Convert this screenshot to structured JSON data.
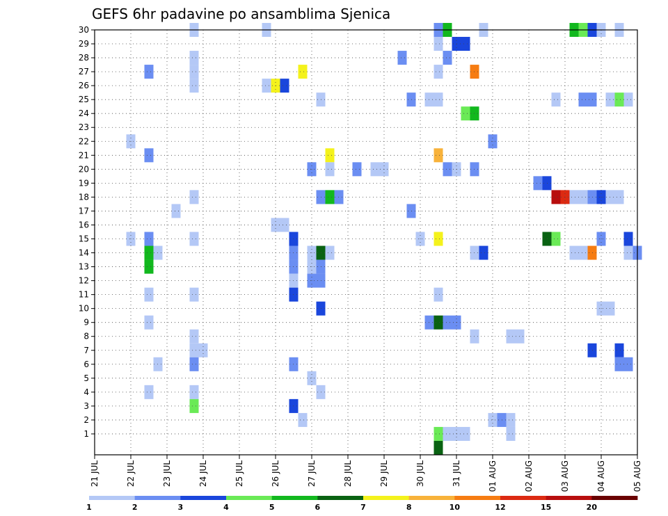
{
  "chart_data": {
    "type": "heatmap",
    "title": "GEFS 6hr padavine po ansamblima Sjenica",
    "xlabel": "",
    "ylabel": "",
    "x_tick_labels": [
      "21 JUL",
      "22 JUL",
      "23 JUL",
      "24 JUL",
      "25 JUL",
      "26 JUL",
      "27 JUL",
      "28 JUL",
      "29 JUL",
      "30 JUL",
      "31 JUL",
      "01 AUG",
      "02 AUG",
      "03 AUG",
      "04 AUG",
      "05 AUG"
    ],
    "y_tick_labels": [
      "1",
      "2",
      "3",
      "4",
      "5",
      "6",
      "7",
      "8",
      "9",
      "10",
      "11",
      "12",
      "13",
      "14",
      "15",
      "16",
      "17",
      "18",
      "19",
      "20",
      "21",
      "22",
      "23",
      "24",
      "25",
      "26",
      "27",
      "28",
      "29",
      "30"
    ],
    "ylim": [
      0,
      30
    ],
    "xlim_steps": [
      0,
      60
    ],
    "steps_per_day": 4,
    "grid": true,
    "colorbar": {
      "bounds": [
        "1",
        "2",
        "3",
        "4",
        "5",
        "6",
        "7",
        "8",
        "10",
        "12",
        "15",
        "20"
      ],
      "colors": [
        "#b4c8f6",
        "#6b8ef2",
        "#1a46dc",
        "#6aea56",
        "#12b81e",
        "#096212",
        "#f4f21c",
        "#f8b23a",
        "#f67c12",
        "#dc2a12",
        "#b80e0e",
        "#6a0202"
      ]
    },
    "cells": [
      {
        "m": 30,
        "s": 11,
        "v": 1
      },
      {
        "m": 30,
        "s": 19,
        "v": 1
      },
      {
        "m": 30,
        "s": 38,
        "v": 2
      },
      {
        "m": 30,
        "s": 39,
        "v": 5
      },
      {
        "m": 30,
        "s": 43,
        "v": 1
      },
      {
        "m": 30,
        "s": 53,
        "v": 5
      },
      {
        "m": 30,
        "s": 54,
        "v": 4
      },
      {
        "m": 30,
        "s": 55,
        "v": 3
      },
      {
        "m": 30,
        "s": 56,
        "v": 1
      },
      {
        "m": 30,
        "s": 58,
        "v": 1
      },
      {
        "m": 29,
        "s": 38,
        "v": 1
      },
      {
        "m": 29,
        "s": 40,
        "v": 3
      },
      {
        "m": 29,
        "s": 41,
        "v": 3
      },
      {
        "m": 28,
        "s": 11,
        "v": 1
      },
      {
        "m": 28,
        "s": 34,
        "v": 2
      },
      {
        "m": 28,
        "s": 39,
        "v": 2
      },
      {
        "m": 27,
        "s": 6,
        "v": 2
      },
      {
        "m": 27,
        "s": 11,
        "v": 1
      },
      {
        "m": 27,
        "s": 23,
        "v": 7
      },
      {
        "m": 27,
        "s": 38,
        "v": 1
      },
      {
        "m": 27,
        "s": 42,
        "v": 10
      },
      {
        "m": 26,
        "s": 11,
        "v": 1
      },
      {
        "m": 26,
        "s": 19,
        "v": 1
      },
      {
        "m": 26,
        "s": 20,
        "v": 7
      },
      {
        "m": 26,
        "s": 21,
        "v": 3
      },
      {
        "m": 25,
        "s": 25,
        "v": 1
      },
      {
        "m": 25,
        "s": 35,
        "v": 2
      },
      {
        "m": 25,
        "s": 37,
        "v": 1
      },
      {
        "m": 25,
        "s": 38,
        "v": 1
      },
      {
        "m": 25,
        "s": 51,
        "v": 1
      },
      {
        "m": 25,
        "s": 54,
        "v": 2
      },
      {
        "m": 25,
        "s": 55,
        "v": 2
      },
      {
        "m": 25,
        "s": 57,
        "v": 1
      },
      {
        "m": 25,
        "s": 58,
        "v": 4
      },
      {
        "m": 25,
        "s": 59,
        "v": 1
      },
      {
        "m": 24,
        "s": 41,
        "v": 4
      },
      {
        "m": 24,
        "s": 42,
        "v": 5
      },
      {
        "m": 22,
        "s": 4,
        "v": 1
      },
      {
        "m": 22,
        "s": 44,
        "v": 2
      },
      {
        "m": 21,
        "s": 6,
        "v": 2
      },
      {
        "m": 21,
        "s": 26,
        "v": 7
      },
      {
        "m": 21,
        "s": 38,
        "v": 8
      },
      {
        "m": 20,
        "s": 24,
        "v": 2
      },
      {
        "m": 20,
        "s": 26,
        "v": 1
      },
      {
        "m": 20,
        "s": 29,
        "v": 2
      },
      {
        "m": 20,
        "s": 31,
        "v": 1
      },
      {
        "m": 20,
        "s": 32,
        "v": 1
      },
      {
        "m": 20,
        "s": 39,
        "v": 2
      },
      {
        "m": 20,
        "s": 40,
        "v": 1
      },
      {
        "m": 20,
        "s": 42,
        "v": 2
      },
      {
        "m": 19,
        "s": 49,
        "v": 2
      },
      {
        "m": 19,
        "s": 50,
        "v": 3
      },
      {
        "m": 18,
        "s": 11,
        "v": 1
      },
      {
        "m": 18,
        "s": 25,
        "v": 2
      },
      {
        "m": 18,
        "s": 26,
        "v": 5
      },
      {
        "m": 18,
        "s": 27,
        "v": 2
      },
      {
        "m": 18,
        "s": 51,
        "v": 15
      },
      {
        "m": 18,
        "s": 52,
        "v": 12
      },
      {
        "m": 18,
        "s": 53,
        "v": 1
      },
      {
        "m": 18,
        "s": 54,
        "v": 1
      },
      {
        "m": 18,
        "s": 55,
        "v": 2
      },
      {
        "m": 18,
        "s": 56,
        "v": 3
      },
      {
        "m": 18,
        "s": 57,
        "v": 1
      },
      {
        "m": 18,
        "s": 58,
        "v": 1
      },
      {
        "m": 17,
        "s": 9,
        "v": 1
      },
      {
        "m": 17,
        "s": 35,
        "v": 2
      },
      {
        "m": 16,
        "s": 20,
        "v": 1
      },
      {
        "m": 16,
        "s": 21,
        "v": 1
      },
      {
        "m": 15,
        "s": 4,
        "v": 1
      },
      {
        "m": 15,
        "s": 6,
        "v": 2
      },
      {
        "m": 15,
        "s": 11,
        "v": 1
      },
      {
        "m": 15,
        "s": 22,
        "v": 3
      },
      {
        "m": 15,
        "s": 36,
        "v": 1
      },
      {
        "m": 15,
        "s": 38,
        "v": 7
      },
      {
        "m": 15,
        "s": 50,
        "v": 6
      },
      {
        "m": 15,
        "s": 51,
        "v": 4
      },
      {
        "m": 15,
        "s": 56,
        "v": 2
      },
      {
        "m": 15,
        "s": 59,
        "v": 3
      },
      {
        "m": 14,
        "s": 6,
        "v": 5
      },
      {
        "m": 14,
        "s": 7,
        "v": 1
      },
      {
        "m": 14,
        "s": 22,
        "v": 2
      },
      {
        "m": 14,
        "s": 24,
        "v": 1
      },
      {
        "m": 14,
        "s": 25,
        "v": 6
      },
      {
        "m": 14,
        "s": 26,
        "v": 1
      },
      {
        "m": 14,
        "s": 42,
        "v": 1
      },
      {
        "m": 14,
        "s": 43,
        "v": 3
      },
      {
        "m": 14,
        "s": 53,
        "v": 1
      },
      {
        "m": 14,
        "s": 54,
        "v": 1
      },
      {
        "m": 14,
        "s": 55,
        "v": 11
      },
      {
        "m": 14,
        "s": 59,
        "v": 1
      },
      {
        "m": 14,
        "s": 60,
        "v": 2
      },
      {
        "m": 13,
        "s": 6,
        "v": 5
      },
      {
        "m": 13,
        "s": 22,
        "v": 2
      },
      {
        "m": 13,
        "s": 24,
        "v": 1
      },
      {
        "m": 13,
        "s": 25,
        "v": 2
      },
      {
        "m": 12,
        "s": 22,
        "v": 1
      },
      {
        "m": 12,
        "s": 24,
        "v": 2
      },
      {
        "m": 12,
        "s": 25,
        "v": 2
      },
      {
        "m": 11,
        "s": 6,
        "v": 1
      },
      {
        "m": 11,
        "s": 11,
        "v": 1
      },
      {
        "m": 11,
        "s": 22,
        "v": 3
      },
      {
        "m": 11,
        "s": 38,
        "v": 1
      },
      {
        "m": 10,
        "s": 25,
        "v": 3
      },
      {
        "m": 10,
        "s": 56,
        "v": 1
      },
      {
        "m": 10,
        "s": 57,
        "v": 1
      },
      {
        "m": 9,
        "s": 6,
        "v": 1
      },
      {
        "m": 9,
        "s": 37,
        "v": 2
      },
      {
        "m": 9,
        "s": 38,
        "v": 6
      },
      {
        "m": 9,
        "s": 39,
        "v": 2
      },
      {
        "m": 9,
        "s": 40,
        "v": 2
      },
      {
        "m": 8,
        "s": 11,
        "v": 1
      },
      {
        "m": 8,
        "s": 42,
        "v": 1
      },
      {
        "m": 8,
        "s": 46,
        "v": 1
      },
      {
        "m": 8,
        "s": 47,
        "v": 1
      },
      {
        "m": 7,
        "s": 11,
        "v": 1
      },
      {
        "m": 7,
        "s": 12,
        "v": 1
      },
      {
        "m": 7,
        "s": 55,
        "v": 3
      },
      {
        "m": 7,
        "s": 58,
        "v": 3
      },
      {
        "m": 6,
        "s": 7,
        "v": 1
      },
      {
        "m": 6,
        "s": 11,
        "v": 2
      },
      {
        "m": 6,
        "s": 22,
        "v": 2
      },
      {
        "m": 6,
        "s": 58,
        "v": 2
      },
      {
        "m": 6,
        "s": 59,
        "v": 2
      },
      {
        "m": 5,
        "s": 24,
        "v": 1
      },
      {
        "m": 4,
        "s": 6,
        "v": 1
      },
      {
        "m": 4,
        "s": 11,
        "v": 1
      },
      {
        "m": 4,
        "s": 25,
        "v": 1
      },
      {
        "m": 3,
        "s": 11,
        "v": 4
      },
      {
        "m": 3,
        "s": 22,
        "v": 3
      },
      {
        "m": 2,
        "s": 23,
        "v": 1
      },
      {
        "m": 2,
        "s": 44,
        "v": 1
      },
      {
        "m": 2,
        "s": 45,
        "v": 2
      },
      {
        "m": 2,
        "s": 46,
        "v": 1
      },
      {
        "m": 1,
        "s": 38,
        "v": 4
      },
      {
        "m": 1,
        "s": 39,
        "v": 1
      },
      {
        "m": 1,
        "s": 40,
        "v": 1
      },
      {
        "m": 1,
        "s": 41,
        "v": 1
      },
      {
        "m": 1,
        "s": 46,
        "v": 1
      },
      {
        "m": 0,
        "s": 38,
        "v": 6
      }
    ]
  }
}
